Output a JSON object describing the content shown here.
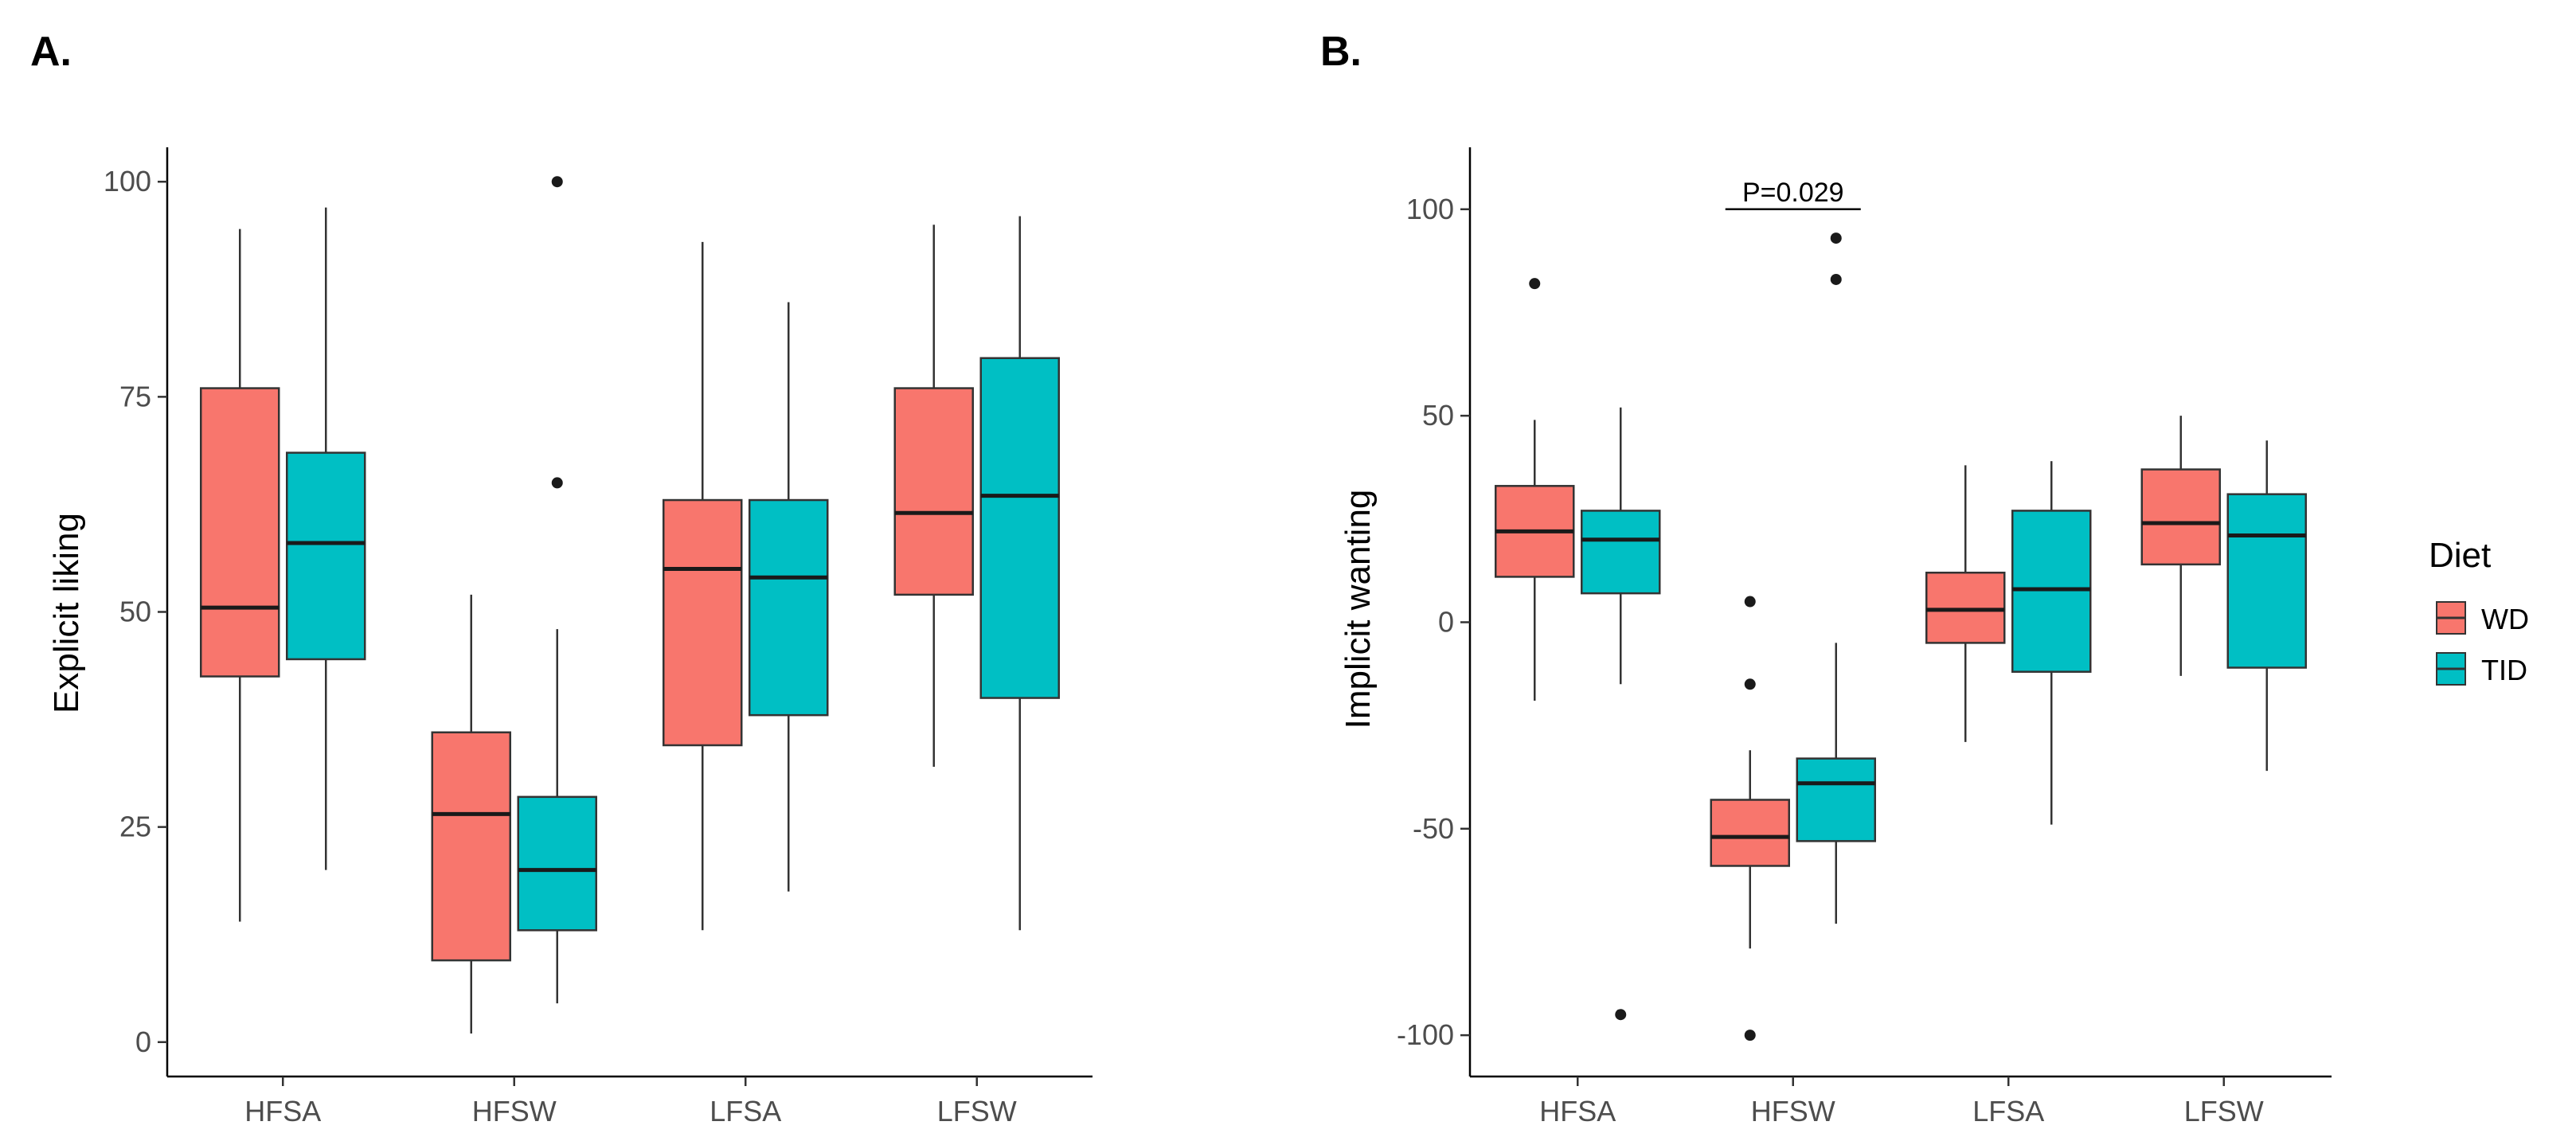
{
  "panels": {
    "a": {
      "label": "A."
    },
    "b": {
      "label": "B."
    }
  },
  "legend": {
    "title": "Diet",
    "items": [
      {
        "name": "WD",
        "color": "#F8766D"
      },
      {
        "name": "TID",
        "color": "#00BFC4"
      }
    ]
  },
  "chart_data": [
    {
      "type": "box",
      "title": "",
      "xlabel": "",
      "ylabel": "Explicit liking",
      "categories": [
        "HFSA",
        "HFSW",
        "LFSA",
        "LFSW"
      ],
      "ylim": [
        -4,
        104
      ],
      "yticks": [
        0,
        25,
        50,
        75,
        100
      ],
      "series": [
        {
          "name": "WD",
          "color": "#F8766D",
          "boxes": [
            {
              "whisker_low": 14,
              "q1": 42.5,
              "median": 50.5,
              "q3": 76,
              "whisker_high": 94.5,
              "outliers": []
            },
            {
              "whisker_low": 1,
              "q1": 9.5,
              "median": 26.5,
              "q3": 36,
              "whisker_high": 52,
              "outliers": []
            },
            {
              "whisker_low": 13,
              "q1": 34.5,
              "median": 55,
              "q3": 63,
              "whisker_high": 93,
              "outliers": []
            },
            {
              "whisker_low": 32,
              "q1": 52,
              "median": 61.5,
              "q3": 76,
              "whisker_high": 95,
              "outliers": []
            }
          ]
        },
        {
          "name": "TID",
          "color": "#00BFC4",
          "boxes": [
            {
              "whisker_low": 20,
              "q1": 44.5,
              "median": 58,
              "q3": 68.5,
              "whisker_high": 97,
              "outliers": []
            },
            {
              "whisker_low": 4.5,
              "q1": 13,
              "median": 20,
              "q3": 28.5,
              "whisker_high": 48,
              "outliers": [
                65,
                100
              ]
            },
            {
              "whisker_low": 17.5,
              "q1": 38,
              "median": 54,
              "q3": 63,
              "whisker_high": 86,
              "outliers": []
            },
            {
              "whisker_low": 13,
              "q1": 40,
              "median": 63.5,
              "q3": 79.5,
              "whisker_high": 96,
              "outliers": []
            }
          ]
        }
      ]
    },
    {
      "type": "box",
      "title": "",
      "xlabel": "",
      "ylabel": "Implicit wanting",
      "categories": [
        "HFSA",
        "HFSW",
        "LFSA",
        "LFSW"
      ],
      "ylim": [
        -110,
        115
      ],
      "yticks": [
        -100,
        -50,
        0,
        50,
        100
      ],
      "annotations": [
        {
          "text": "P=0.029",
          "category_index": 1,
          "y": 100
        }
      ],
      "series": [
        {
          "name": "WD",
          "color": "#F8766D",
          "boxes": [
            {
              "whisker_low": -19,
              "q1": 11,
              "median": 22,
              "q3": 33,
              "whisker_high": 49,
              "outliers": [
                82
              ]
            },
            {
              "whisker_low": -79,
              "q1": -59,
              "median": -52,
              "q3": -43,
              "whisker_high": -31,
              "outliers": [
                5,
                -15,
                -100
              ]
            },
            {
              "whisker_low": -29,
              "q1": -5,
              "median": 3,
              "q3": 12,
              "whisker_high": 38,
              "outliers": []
            },
            {
              "whisker_low": -13,
              "q1": 14,
              "median": 24,
              "q3": 37,
              "whisker_high": 50,
              "outliers": []
            }
          ]
        },
        {
          "name": "TID",
          "color": "#00BFC4",
          "boxes": [
            {
              "whisker_low": -15,
              "q1": 7,
              "median": 20,
              "q3": 27,
              "whisker_high": 52,
              "outliers": [
                -95
              ]
            },
            {
              "whisker_low": -73,
              "q1": -53,
              "median": -39,
              "q3": -33,
              "whisker_high": -5,
              "outliers": [
                83,
                93
              ]
            },
            {
              "whisker_low": -49,
              "q1": -12,
              "median": 8,
              "q3": 27,
              "whisker_high": 39,
              "outliers": []
            },
            {
              "whisker_low": -36,
              "q1": -11,
              "median": 21,
              "q3": 31,
              "whisker_high": 44,
              "outliers": []
            }
          ]
        }
      ]
    }
  ]
}
